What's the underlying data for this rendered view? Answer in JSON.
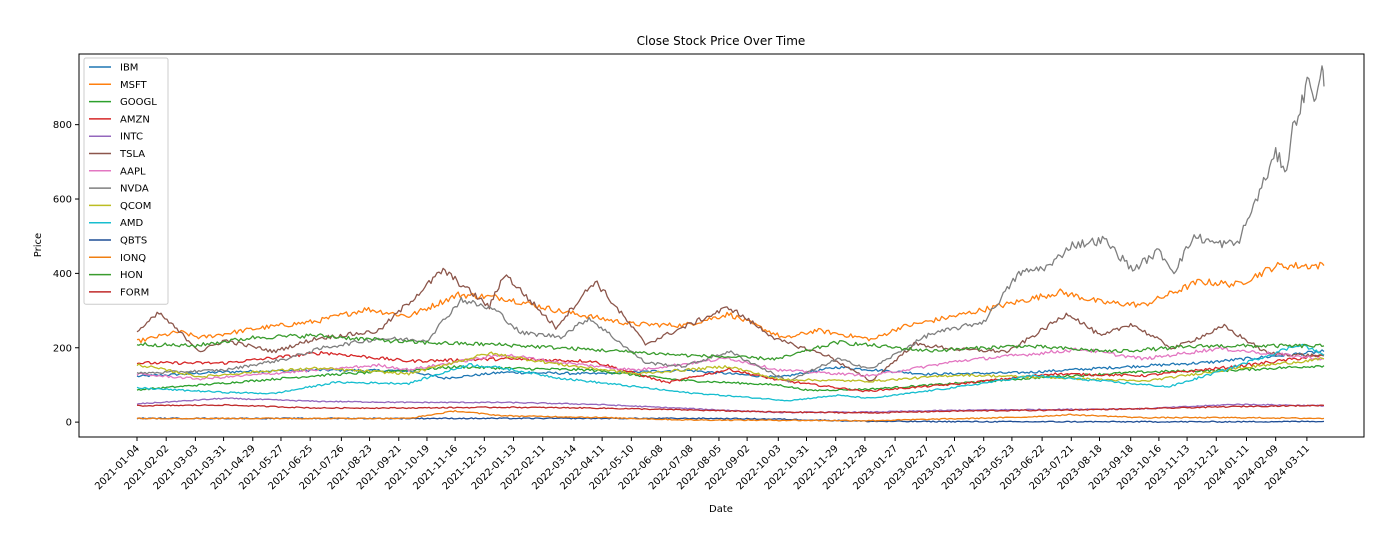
{
  "chart_data": {
    "type": "line",
    "title": "Close Stock Price Over Time",
    "xlabel": "Date",
    "ylabel": "Price",
    "x_range": [
      "2021-01-04",
      "2024-03-28"
    ],
    "ylim": [
      -40,
      990
    ],
    "yticks": [
      0,
      200,
      400,
      600,
      800
    ],
    "xticks": [
      "2021-01-04",
      "2021-02-02",
      "2021-03-03",
      "2021-03-31",
      "2021-04-29",
      "2021-05-27",
      "2021-06-25",
      "2021-07-26",
      "2021-08-23",
      "2021-09-21",
      "2021-10-19",
      "2021-11-16",
      "2021-12-15",
      "2022-01-13",
      "2022-02-11",
      "2022-03-14",
      "2022-04-11",
      "2022-05-10",
      "2022-06-08",
      "2022-07-08",
      "2022-08-05",
      "2022-09-02",
      "2022-10-03",
      "2022-10-31",
      "2022-11-29",
      "2022-12-28",
      "2023-01-27",
      "2023-02-27",
      "2023-03-27",
      "2023-04-25",
      "2023-05-23",
      "2023-06-22",
      "2023-07-21",
      "2023-08-18",
      "2023-09-18",
      "2023-10-16",
      "2023-11-13",
      "2023-12-12",
      "2024-01-11",
      "2024-02-09",
      "2024-03-11"
    ],
    "grid": false,
    "legend_position": "upper-left",
    "series": [
      {
        "name": "IBM",
        "color": "#1f77b4",
        "points": [
          [
            "2021-01-04",
            123
          ],
          [
            "2021-04-01",
            135
          ],
          [
            "2021-07-01",
            140
          ],
          [
            "2021-10-01",
            138
          ],
          [
            "2021-11-05",
            118
          ],
          [
            "2022-01-03",
            134
          ],
          [
            "2022-04-01",
            130
          ],
          [
            "2022-07-01",
            140
          ],
          [
            "2022-10-03",
            120
          ],
          [
            "2022-12-01",
            148
          ],
          [
            "2023-03-01",
            129
          ],
          [
            "2023-06-01",
            133
          ],
          [
            "2023-09-01",
            147
          ],
          [
            "2023-12-01",
            160
          ],
          [
            "2024-03-28",
            190
          ]
        ]
      },
      {
        "name": "MSFT",
        "color": "#ff7f0e",
        "points": [
          [
            "2021-01-04",
            217
          ],
          [
            "2021-02-15",
            243
          ],
          [
            "2021-03-08",
            227
          ],
          [
            "2021-05-03",
            252
          ],
          [
            "2021-07-01",
            271
          ],
          [
            "2021-08-20",
            304
          ],
          [
            "2021-10-01",
            285
          ],
          [
            "2021-11-19",
            343
          ],
          [
            "2022-01-03",
            334
          ],
          [
            "2022-03-01",
            298
          ],
          [
            "2022-05-10",
            264
          ],
          [
            "2022-07-01",
            260
          ],
          [
            "2022-08-15",
            291
          ],
          [
            "2022-10-10",
            225
          ],
          [
            "2022-11-10",
            247
          ],
          [
            "2023-01-05",
            222
          ],
          [
            "2023-02-01",
            255
          ],
          [
            "2023-04-01",
            288
          ],
          [
            "2023-05-20",
            318
          ],
          [
            "2023-07-10",
            350
          ],
          [
            "2023-08-20",
            322
          ],
          [
            "2023-10-01",
            315
          ],
          [
            "2023-11-25",
            378
          ],
          [
            "2024-01-02",
            370
          ],
          [
            "2024-02-09",
            420
          ],
          [
            "2024-03-28",
            421
          ]
        ]
      },
      {
        "name": "GOOGL",
        "color": "#2ca02c",
        "points": [
          [
            "2021-01-04",
            87
          ],
          [
            "2021-04-01",
            105
          ],
          [
            "2021-07-01",
            125
          ],
          [
            "2021-10-01",
            140
          ],
          [
            "2021-11-19",
            149
          ],
          [
            "2022-01-03",
            145
          ],
          [
            "2022-04-01",
            140
          ],
          [
            "2022-07-01",
            112
          ],
          [
            "2022-10-03",
            100
          ],
          [
            "2022-11-03",
            85
          ],
          [
            "2023-01-03",
            89
          ],
          [
            "2023-04-01",
            105
          ],
          [
            "2023-07-01",
            122
          ],
          [
            "2023-10-01",
            135
          ],
          [
            "2024-01-02",
            140
          ],
          [
            "2024-03-28",
            152
          ]
        ]
      },
      {
        "name": "AMZN",
        "color": "#d62728",
        "points": [
          [
            "2021-01-04",
            159
          ],
          [
            "2021-04-01",
            159
          ],
          [
            "2021-07-08",
            187
          ],
          [
            "2021-10-01",
            164
          ],
          [
            "2022-01-03",
            170
          ],
          [
            "2022-04-01",
            164
          ],
          [
            "2022-06-15",
            106
          ],
          [
            "2022-08-15",
            142
          ],
          [
            "2022-10-03",
            113
          ],
          [
            "2022-12-28",
            83
          ],
          [
            "2023-04-01",
            103
          ],
          [
            "2023-07-01",
            130
          ],
          [
            "2023-10-01",
            125
          ],
          [
            "2024-01-02",
            150
          ],
          [
            "2024-03-28",
            180
          ]
        ]
      },
      {
        "name": "INTC",
        "color": "#9467bd",
        "points": [
          [
            "2021-01-04",
            49
          ],
          [
            "2021-04-01",
            64
          ],
          [
            "2021-07-01",
            56
          ],
          [
            "2021-10-01",
            53
          ],
          [
            "2022-01-03",
            53
          ],
          [
            "2022-04-01",
            48
          ],
          [
            "2022-07-01",
            37
          ],
          [
            "2022-10-03",
            26
          ],
          [
            "2023-01-03",
            27
          ],
          [
            "2023-04-01",
            32
          ],
          [
            "2023-07-01",
            34
          ],
          [
            "2023-10-01",
            36
          ],
          [
            "2024-01-02",
            48
          ],
          [
            "2024-03-28",
            44
          ]
        ]
      },
      {
        "name": "TSLA",
        "color": "#8c564b",
        "points": [
          [
            "2021-01-04",
            243
          ],
          [
            "2021-01-26",
            293
          ],
          [
            "2021-03-08",
            190
          ],
          [
            "2021-04-01",
            220
          ],
          [
            "2021-05-20",
            190
          ],
          [
            "2021-07-01",
            225
          ],
          [
            "2021-09-01",
            245
          ],
          [
            "2021-11-04",
            409
          ],
          [
            "2021-12-20",
            310
          ],
          [
            "2022-01-04",
            399
          ],
          [
            "2022-02-24",
            255
          ],
          [
            "2022-04-04",
            380
          ],
          [
            "2022-05-24",
            210
          ],
          [
            "2022-08-15",
            309
          ],
          [
            "2022-10-03",
            220
          ],
          [
            "2022-11-20",
            180
          ],
          [
            "2023-01-03",
            110
          ],
          [
            "2023-02-15",
            210
          ],
          [
            "2023-04-01",
            195
          ],
          [
            "2023-05-20",
            190
          ],
          [
            "2023-07-18",
            293
          ],
          [
            "2023-08-20",
            230
          ],
          [
            "2023-09-18",
            265
          ],
          [
            "2023-10-30",
            198
          ],
          [
            "2023-12-20",
            257
          ],
          [
            "2024-02-01",
            185
          ],
          [
            "2024-03-28",
            178
          ]
        ]
      },
      {
        "name": "AAPL",
        "color": "#e377c2",
        "points": [
          [
            "2021-01-04",
            129
          ],
          [
            "2021-03-08",
            116
          ],
          [
            "2021-05-01",
            127
          ],
          [
            "2021-07-01",
            140
          ],
          [
            "2021-09-01",
            153
          ],
          [
            "2021-10-01",
            141
          ],
          [
            "2022-01-03",
            182
          ],
          [
            "2022-03-01",
            160
          ],
          [
            "2022-05-15",
            140
          ],
          [
            "2022-08-15",
            172
          ],
          [
            "2022-10-03",
            140
          ],
          [
            "2023-01-03",
            125
          ],
          [
            "2023-04-01",
            165
          ],
          [
            "2023-07-31",
            196
          ],
          [
            "2023-10-01",
            170
          ],
          [
            "2023-12-14",
            198
          ],
          [
            "2024-03-28",
            170
          ]
        ]
      },
      {
        "name": "NVDA",
        "color": "#7f7f7f",
        "points": [
          [
            "2021-01-04",
            131
          ],
          [
            "2021-04-01",
            140
          ],
          [
            "2021-06-01",
            170
          ],
          [
            "2021-07-08",
            200
          ],
          [
            "2021-09-01",
            225
          ],
          [
            "2021-10-19",
            220
          ],
          [
            "2021-11-22",
            330
          ],
          [
            "2021-12-27",
            300
          ],
          [
            "2022-01-20",
            240
          ],
          [
            "2022-03-01",
            230
          ],
          [
            "2022-03-29",
            280
          ],
          [
            "2022-05-24",
            160
          ],
          [
            "2022-07-01",
            150
          ],
          [
            "2022-08-15",
            190
          ],
          [
            "2022-10-13",
            110
          ],
          [
            "2022-12-01",
            170
          ],
          [
            "2023-01-03",
            143
          ],
          [
            "2023-03-01",
            235
          ],
          [
            "2023-04-25",
            270
          ],
          [
            "2023-05-30",
            400
          ],
          [
            "2023-06-30",
            420
          ],
          [
            "2023-07-20",
            475
          ],
          [
            "2023-08-23",
            490
          ],
          [
            "2023-09-20",
            410
          ],
          [
            "2023-10-16",
            460
          ],
          [
            "2023-10-31",
            405
          ],
          [
            "2023-11-20",
            500
          ],
          [
            "2023-12-12",
            480
          ],
          [
            "2024-01-02",
            480
          ],
          [
            "2024-02-09",
            720
          ],
          [
            "2024-02-20",
            680
          ],
          [
            "2024-02-26",
            790
          ],
          [
            "2024-03-08",
            875
          ],
          [
            "2024-03-13",
            930
          ],
          [
            "2024-03-20",
            860
          ],
          [
            "2024-03-26",
            950
          ],
          [
            "2024-03-28",
            903
          ]
        ]
      },
      {
        "name": "QCOM",
        "color": "#bcbd22",
        "points": [
          [
            "2021-01-04",
            155
          ],
          [
            "2021-03-08",
            122
          ],
          [
            "2021-05-01",
            135
          ],
          [
            "2021-07-01",
            145
          ],
          [
            "2021-10-01",
            130
          ],
          [
            "2021-12-20",
            185
          ],
          [
            "2022-03-01",
            155
          ],
          [
            "2022-05-15",
            130
          ],
          [
            "2022-08-15",
            150
          ],
          [
            "2022-10-03",
            115
          ],
          [
            "2023-01-03",
            110
          ],
          [
            "2023-04-01",
            127
          ],
          [
            "2023-07-01",
            120
          ],
          [
            "2023-10-01",
            110
          ],
          [
            "2024-01-02",
            145
          ],
          [
            "2024-03-28",
            170
          ]
        ]
      },
      {
        "name": "AMD",
        "color": "#17becf",
        "points": [
          [
            "2021-01-04",
            92
          ],
          [
            "2021-04-01",
            80
          ],
          [
            "2021-05-20",
            77
          ],
          [
            "2021-07-20",
            107
          ],
          [
            "2021-10-01",
            104
          ],
          [
            "2021-11-30",
            155
          ],
          [
            "2022-01-03",
            145
          ],
          [
            "2022-03-01",
            118
          ],
          [
            "2022-05-15",
            95
          ],
          [
            "2022-07-01",
            80
          ],
          [
            "2022-10-13",
            58
          ],
          [
            "2022-12-01",
            72
          ],
          [
            "2023-01-03",
            64
          ],
          [
            "2023-04-01",
            95
          ],
          [
            "2023-06-13",
            125
          ],
          [
            "2023-08-01",
            115
          ],
          [
            "2023-10-26",
            95
          ],
          [
            "2023-12-20",
            140
          ],
          [
            "2024-03-05",
            210
          ],
          [
            "2024-03-28",
            180
          ]
        ]
      },
      {
        "name": "QBTS",
        "color": "#1f4e96",
        "points": [
          [
            "2021-01-04",
            10
          ],
          [
            "2021-06-01",
            10
          ],
          [
            "2022-01-03",
            10
          ],
          [
            "2022-08-01",
            10
          ],
          [
            "2022-10-03",
            8
          ],
          [
            "2023-01-03",
            2
          ],
          [
            "2023-06-01",
            1
          ],
          [
            "2024-01-02",
            1
          ],
          [
            "2024-03-28",
            2
          ]
        ]
      },
      {
        "name": "IONQ",
        "color": "#f07f12",
        "points": [
          [
            "2021-01-04",
            10
          ],
          [
            "2021-06-01",
            10
          ],
          [
            "2021-10-01",
            10
          ],
          [
            "2021-11-16",
            30
          ],
          [
            "2022-01-03",
            17
          ],
          [
            "2022-04-01",
            13
          ],
          [
            "2022-07-01",
            6
          ],
          [
            "2022-10-03",
            5
          ],
          [
            "2023-01-03",
            4
          ],
          [
            "2023-06-01",
            13
          ],
          [
            "2023-07-20",
            20
          ],
          [
            "2023-10-01",
            12
          ],
          [
            "2024-01-02",
            12
          ],
          [
            "2024-03-28",
            10
          ]
        ]
      },
      {
        "name": "HON",
        "color": "#3a9c2e",
        "points": [
          [
            "2021-01-04",
            210
          ],
          [
            "2021-03-01",
            205
          ],
          [
            "2021-05-01",
            228
          ],
          [
            "2021-07-01",
            233
          ],
          [
            "2021-10-01",
            215
          ],
          [
            "2022-01-03",
            208
          ],
          [
            "2022-04-01",
            195
          ],
          [
            "2022-07-01",
            180
          ],
          [
            "2022-10-03",
            170
          ],
          [
            "2022-12-01",
            215
          ],
          [
            "2023-03-01",
            192
          ],
          [
            "2023-06-01",
            205
          ],
          [
            "2023-09-01",
            190
          ],
          [
            "2023-12-01",
            205
          ],
          [
            "2024-03-28",
            205
          ]
        ]
      },
      {
        "name": "FORM",
        "color": "#c02a2a",
        "points": [
          [
            "2021-01-04",
            44
          ],
          [
            "2021-04-01",
            46
          ],
          [
            "2021-07-01",
            38
          ],
          [
            "2021-10-01",
            38
          ],
          [
            "2022-01-03",
            40
          ],
          [
            "2022-04-01",
            38
          ],
          [
            "2022-07-01",
            33
          ],
          [
            "2022-10-03",
            27
          ],
          [
            "2023-01-03",
            25
          ],
          [
            "2023-04-01",
            30
          ],
          [
            "2023-07-01",
            32
          ],
          [
            "2023-10-01",
            36
          ],
          [
            "2024-01-02",
            42
          ],
          [
            "2024-03-28",
            45
          ]
        ]
      }
    ]
  }
}
